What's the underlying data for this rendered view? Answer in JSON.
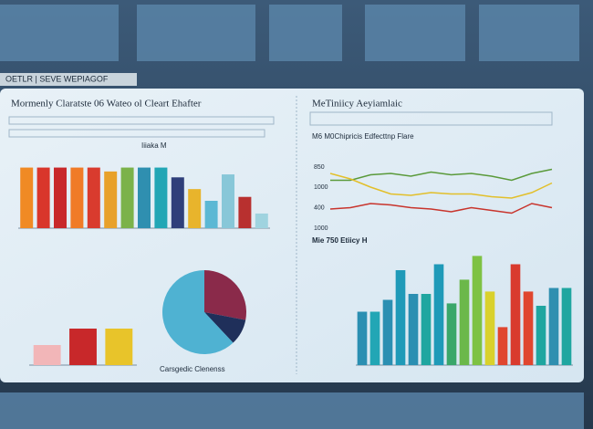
{
  "header": {
    "title": "OETLR | SEVE WEPIAGOF"
  },
  "chart_data": [
    {
      "type": "bar",
      "title": "Mormenly Claratste 06 Wateo ol Cleart Ehafter",
      "subtitle": "Iiiaka M",
      "categories": [
        null,
        null,
        null,
        null,
        null,
        null,
        null,
        null,
        null,
        null,
        null,
        null,
        null,
        null,
        null
      ],
      "values": [
        62,
        62,
        62,
        62,
        62,
        58,
        62,
        62,
        62,
        52,
        40,
        28,
        55,
        32,
        15
      ],
      "colors": [
        "#f08a24",
        "#d9362b",
        "#c8282a",
        "#f07b27",
        "#d93b2e",
        "#e8a12a",
        "#7bb24a",
        "#2f8fb0",
        "#22a6b5",
        "#2f3f7a",
        "#e8b42c",
        "#5bb8d4",
        "#88c7d8",
        "#b8302f",
        "#9fd3df"
      ],
      "ylim": [
        0,
        70
      ]
    },
    {
      "type": "line",
      "title": "MeTiniicy Aeyiamlaic",
      "subtitle": "M6 M0Chipricis Edfecttnp Flare",
      "side_labels": [
        "850",
        "1000",
        "400",
        "1000"
      ],
      "x": [
        1,
        2,
        3,
        4,
        5,
        6,
        7,
        8,
        9,
        10,
        11,
        12
      ],
      "xlim": [
        1,
        12
      ],
      "ylim": [
        0,
        100
      ],
      "series": [
        {
          "name": "Green",
          "color": "#5a9a3a",
          "values": [
            70,
            70,
            78,
            80,
            76,
            82,
            78,
            80,
            76,
            70,
            80,
            86
          ]
        },
        {
          "name": "Yellow",
          "color": "#e2bf2a",
          "values": [
            80,
            72,
            60,
            50,
            48,
            52,
            50,
            50,
            46,
            44,
            52,
            66
          ]
        },
        {
          "name": "Red",
          "color": "#c8342c",
          "values": [
            28,
            30,
            36,
            34,
            30,
            28,
            24,
            30,
            26,
            22,
            36,
            30
          ]
        }
      ]
    },
    {
      "type": "bar",
      "title": "Mie 750 Etiicy H",
      "categories": [
        null,
        null,
        null,
        null,
        null,
        null,
        null,
        null,
        null,
        null,
        null,
        null,
        null,
        null,
        null,
        null,
        null
      ],
      "values": [
        45,
        45,
        55,
        80,
        60,
        60,
        85,
        52,
        72,
        92,
        62,
        32,
        85,
        62,
        50,
        65,
        65
      ],
      "colors": [
        "#2b8fb2",
        "#22a6b5",
        "#2b8fb2",
        "#1f9ab8",
        "#2b8fb2",
        "#1fa6a0",
        "#1f9ab8",
        "#3aa76a",
        "#6bb84a",
        "#7ec243",
        "#d9d12c",
        "#e0462f",
        "#d93b2e",
        "#e0462f",
        "#1fa6a0",
        "#2f8fb0",
        "#1fa6a0"
      ],
      "ylim": [
        0,
        100
      ]
    },
    {
      "type": "bar",
      "categories": [
        null,
        null,
        null
      ],
      "values": [
        22,
        40,
        40
      ],
      "colors": [
        "#f2b6b8",
        "#c8282a",
        "#e8c42a"
      ],
      "ylim": [
        0,
        70
      ]
    },
    {
      "type": "pie",
      "title": "Carsgedic Clenenss",
      "values": [
        28,
        10,
        62
      ],
      "colors": [
        "#8a2a4a",
        "#1f2f5a",
        "#4fb2d2"
      ]
    }
  ]
}
